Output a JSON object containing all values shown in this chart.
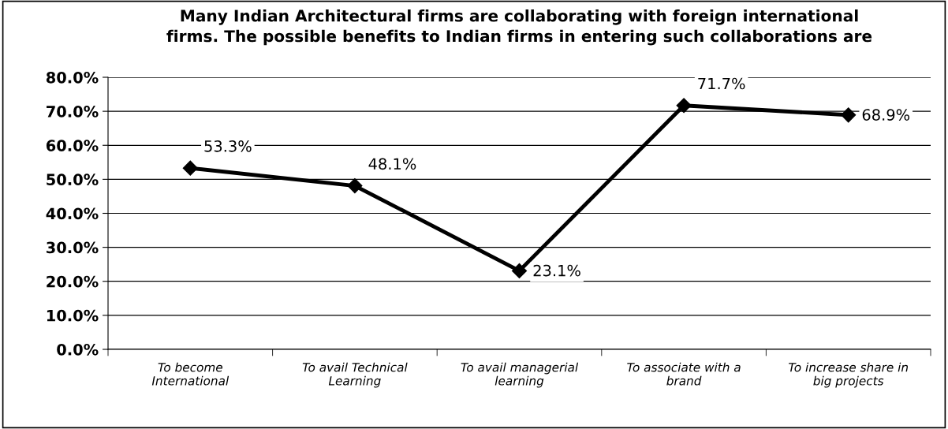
{
  "chart_data": {
    "type": "line",
    "title": "Many Indian Architectural firms are collaborating with foreign international\nfirms. The possible benefits to Indian firms in entering such collaborations are",
    "categories": [
      "To become\nInternational",
      "To avail Technical\nLearning",
      "To avail managerial\nlearning",
      "To associate with a\nbrand",
      "To increase share in\nbig projects"
    ],
    "series": [
      {
        "color": "#000000",
        "values": [
          53.3,
          48.1,
          23.1,
          71.7,
          68.9
        ],
        "value_labels": [
          "53.3%",
          "48.1%",
          "23.1%",
          "71.7%",
          "68.9%"
        ]
      }
    ],
    "ylim": [
      0,
      80
    ],
    "yticks": [
      {
        "value": 0,
        "label": "0.0%"
      },
      {
        "value": 10,
        "label": "10.0%"
      },
      {
        "value": 20,
        "label": "20.0%"
      },
      {
        "value": 30,
        "label": "30.0%"
      },
      {
        "value": 40,
        "label": "40.0%"
      },
      {
        "value": 50,
        "label": "50.0%"
      },
      {
        "value": 60,
        "label": "60.0%"
      },
      {
        "value": 70,
        "label": "70.0%"
      },
      {
        "value": 80,
        "label": "80.0%"
      }
    ],
    "grid": "y",
    "marker": "diamond",
    "line_style": "solid",
    "legend": false
  }
}
